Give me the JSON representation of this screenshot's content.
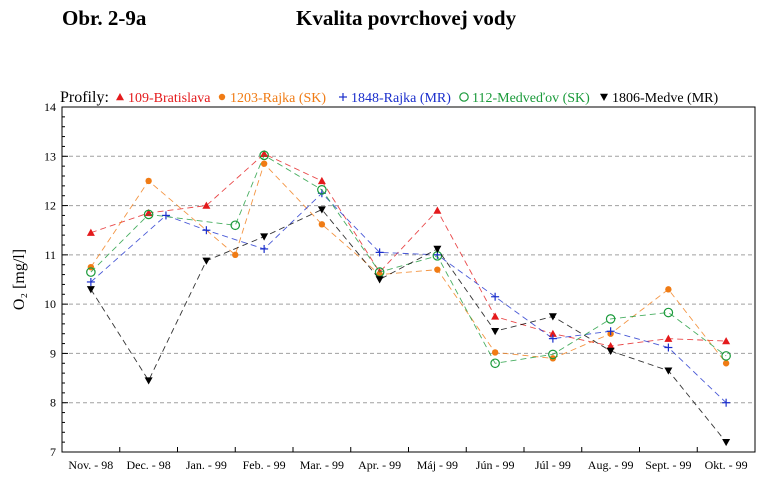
{
  "header": {
    "figure_label": "Obr. 2-9a",
    "title": "Kvalita povrchovej vody"
  },
  "chart_data": {
    "type": "line",
    "title": "Kvalita povrchovej vody",
    "xlabel": "",
    "ylabel": "O₂ [mg/l]",
    "ylim": [
      7,
      14
    ],
    "yticks": [
      7,
      8,
      9,
      10,
      11,
      12,
      13,
      14
    ],
    "grid": true,
    "grid_style": "dashed horizontal",
    "legend_title": "Profily:",
    "legend_position": "top",
    "categories": [
      "Nov. - 98",
      "Dec. - 98",
      "Jan. - 99",
      "Feb. - 99",
      "Mar. - 99",
      "Apr. - 99",
      "Máj - 99",
      "Jún - 99",
      "Júl - 99",
      "Aug. - 99",
      "Sept. - 99",
      "Okt. - 99"
    ],
    "series": [
      {
        "name": "109-Bratislava",
        "color": "#e41a1c",
        "marker": "triangle-up",
        "x": [
          0,
          1,
          2,
          3,
          4,
          5,
          6,
          7,
          8,
          9,
          10,
          11
        ],
        "values": [
          11.45,
          11.85,
          12.0,
          13.05,
          12.5,
          10.65,
          11.9,
          9.75,
          9.4,
          9.15,
          9.3,
          9.25
        ]
      },
      {
        "name": "1203-Rajka (SK)",
        "color": "#f07b14",
        "marker": "dot",
        "x": [
          0,
          1,
          2.5,
          3,
          4,
          5,
          6,
          7,
          8,
          9,
          10,
          11
        ],
        "values": [
          10.75,
          12.5,
          11.0,
          12.85,
          11.62,
          10.6,
          10.7,
          9.02,
          8.9,
          9.4,
          10.3,
          8.8
        ]
      },
      {
        "name": "1848-Rajka (MR)",
        "color": "#1a2ecc",
        "marker": "plus",
        "x": [
          0,
          1.3,
          2,
          3,
          4,
          5,
          6,
          7,
          8,
          9,
          10,
          11
        ],
        "values": [
          10.45,
          11.8,
          11.5,
          11.12,
          12.25,
          11.05,
          11.0,
          10.15,
          9.3,
          9.45,
          9.12,
          8.0
        ]
      },
      {
        "name": "112-Medveďov (SK)",
        "color": "#1a9a3a",
        "marker": "circle",
        "x": [
          0,
          1,
          2.5,
          3,
          4,
          5,
          6,
          7,
          8,
          9,
          10,
          11
        ],
        "values": [
          10.65,
          11.82,
          11.6,
          13.02,
          12.32,
          10.65,
          10.98,
          8.8,
          8.98,
          9.7,
          9.83,
          8.95
        ]
      },
      {
        "name": "1806-Medve (MR)",
        "color": "#000000",
        "marker": "triangle-down",
        "x": [
          0,
          1,
          2,
          3,
          4,
          5,
          6,
          7,
          8,
          9,
          10,
          11
        ],
        "values": [
          10.3,
          8.45,
          10.88,
          11.37,
          11.92,
          10.5,
          11.12,
          9.45,
          9.75,
          9.05,
          8.65,
          7.2
        ]
      }
    ]
  }
}
